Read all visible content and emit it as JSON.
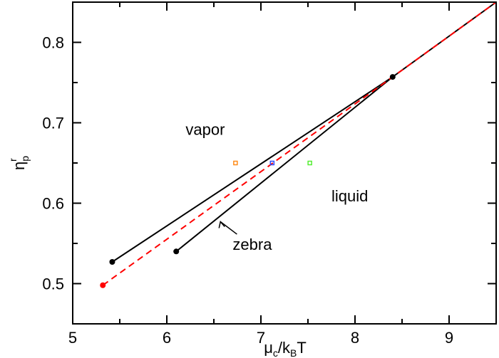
{
  "chart_data": {
    "type": "line",
    "xlabel": "μc/kBT",
    "ylabel": "ηpr",
    "xlim": [
      5,
      9.5
    ],
    "ylim": [
      0.45,
      0.85
    ],
    "xticks": [
      "5",
      "6",
      "7",
      "8",
      "9"
    ],
    "yticks": [
      "0.5",
      "0.6",
      "0.7",
      "0.8"
    ],
    "grid": false,
    "series": [
      {
        "color": "#000000",
        "style": "solid",
        "x": [
          5.42,
          8.4
        ],
        "y": [
          0.527,
          0.757
        ]
      },
      {
        "color": "#000000",
        "style": "solid",
        "x": [
          6.1,
          8.4,
          9.5
        ],
        "y": [
          0.54,
          0.757,
          0.85
        ]
      },
      {
        "color": "#ff0000",
        "style": "dashed",
        "x": [
          5.32,
          8.4,
          9.5
        ],
        "y": [
          0.498,
          0.757,
          0.85
        ]
      }
    ],
    "dots": [
      {
        "color": "#000000",
        "x": 5.42,
        "y": 0.527
      },
      {
        "color": "#000000",
        "x": 6.1,
        "y": 0.54
      },
      {
        "color": "#000000",
        "x": 8.4,
        "y": 0.757
      },
      {
        "color": "#ff0000",
        "x": 5.32,
        "y": 0.498
      }
    ],
    "squares": [
      {
        "color": "#ff8c1a",
        "x": 6.73,
        "y": 0.65
      },
      {
        "color": "#2b4bff",
        "x": 7.12,
        "y": 0.65
      },
      {
        "color": "#55ee33",
        "x": 7.52,
        "y": 0.65
      }
    ],
    "annotations": [
      {
        "text": "vapor",
        "x": 6.2,
        "y": 0.685
      },
      {
        "text": "liquid",
        "x": 7.75,
        "y": 0.602
      },
      {
        "text": "zebra",
        "x": 6.7,
        "y": 0.542,
        "arrow_to": [
          6.57,
          0.577
        ]
      }
    ]
  }
}
